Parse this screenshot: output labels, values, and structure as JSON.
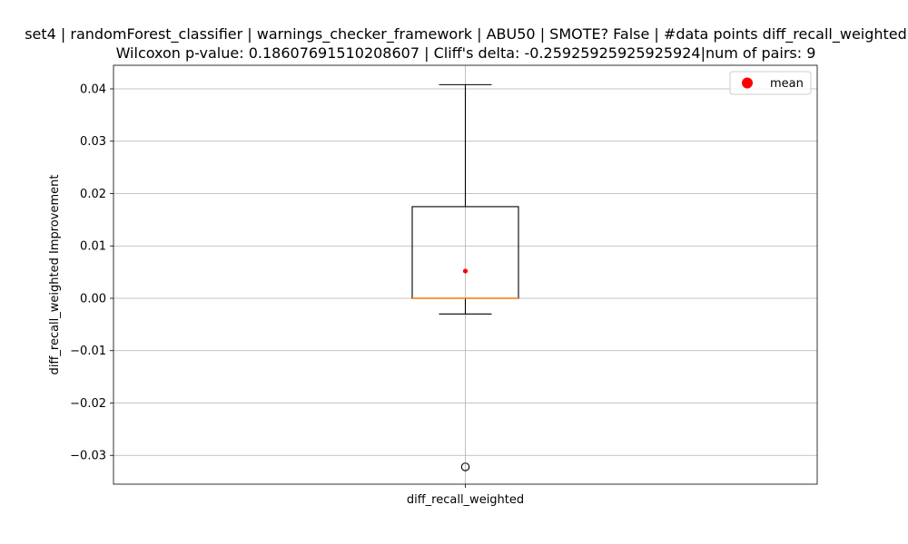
{
  "chart_data": {
    "type": "box",
    "title_lines": [
      "set4 | randomForest_classifier | warnings_checker_framework | ABU50 | SMOTE? False | #data points diff_recall_weighted",
      "Wilcoxon p-value: 0.18607691510208607 | Cliff's delta: -0.25925925925925924|num of pairs: 9"
    ],
    "xlabel": "",
    "ylabel": "diff_recall_weighted Improvement",
    "categories": [
      "diff_recall_weighted"
    ],
    "ylim": [
      -0.0355,
      0.0445
    ],
    "yticks": [
      -0.03,
      -0.02,
      -0.01,
      0.0,
      0.01,
      0.02,
      0.03,
      0.04
    ],
    "ytick_labels": [
      "−0.03",
      "−0.02",
      "−0.01",
      "0.00",
      "0.01",
      "0.02",
      "0.03",
      "0.04"
    ],
    "grid": true,
    "box": {
      "whisker_low": -0.003,
      "q1": 0.0,
      "median": 0.0,
      "q3": 0.0175,
      "whisker_high": 0.0408,
      "mean": 0.0052,
      "outliers": [
        -0.0322
      ]
    },
    "legend": {
      "position": "top-right",
      "entries": [
        {
          "label": "mean",
          "color": "#ff0000",
          "marker": "circle"
        }
      ]
    },
    "colors": {
      "box": "#000000",
      "median": "#ff7f0e",
      "mean": "#ff0000",
      "grid": "#b0b0b0"
    }
  }
}
